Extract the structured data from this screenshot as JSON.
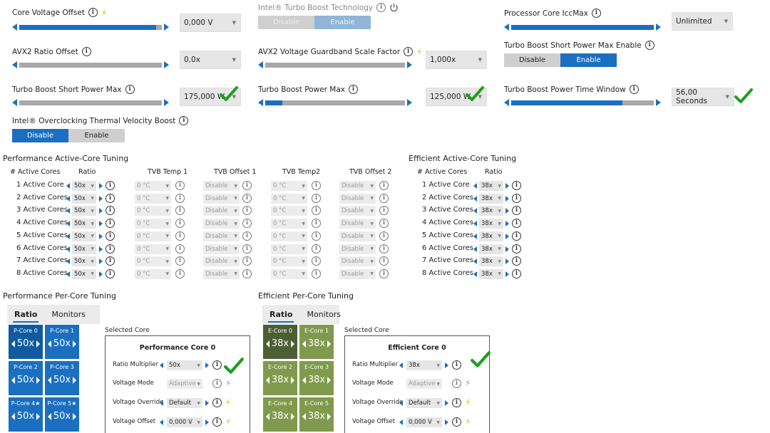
{
  "top_settings": {
    "core_voltage_offset": {
      "label": "Core Voltage Offset",
      "value": "0,000 V",
      "level": 0.96
    },
    "avx2_ratio_offset": {
      "label": "AVX2 Ratio Offset",
      "value": "0,0x",
      "level": 0.96
    },
    "tb_short_power_max": {
      "label": "Turbo Boost Short Power Max",
      "value": "175,000 W",
      "level": 0.65
    },
    "turbo_boost_tech": {
      "label": "Intel® Turbo Boost Technology",
      "options": [
        "Disable",
        "Enable"
      ],
      "selected": "Enable"
    },
    "avx2_voltage_guardband": {
      "label": "AVX2 Voltage Guardband Scale Factor",
      "value": "1,000x",
      "level": 0.96
    },
    "tb_power_max": {
      "label": "Turbo Boost Power Max",
      "value": "125,000 W",
      "level": 0.12
    },
    "processor_iccmax": {
      "label": "Processor Core IccMax",
      "value": "Unlimited",
      "level": 1.0
    },
    "tb_short_power_max_enable": {
      "label": "Turbo Boost Short Power Max Enable",
      "options": [
        "Disable",
        "Enable"
      ],
      "selected": "Enable"
    },
    "tb_power_time_window": {
      "label": "Turbo Boost Power Time Window",
      "value": "56,00 Seconds",
      "level": 0.78
    },
    "thermal_velocity_boost": {
      "label": "Intel® Overclocking Thermal Velocity Boost",
      "options": [
        "Disable",
        "Enable"
      ],
      "selected": "Disable"
    }
  },
  "perf_active_core": {
    "title": "Performance Active-Core Tuning",
    "headers": [
      "# Active Cores",
      "Ratio",
      "TVB Temp 1",
      "TVB Offset 1",
      "TVB Temp2",
      "TVB Offset 2"
    ],
    "rows": [
      {
        "label": "1 Active Core",
        "ratio": "50x",
        "temp1": "0 °C",
        "off1": "Disable",
        "temp2": "0 °C",
        "off2": "Disable"
      },
      {
        "label": "2 Active Cores",
        "ratio": "50x",
        "temp1": "0 °C",
        "off1": "Disable",
        "temp2": "0 °C",
        "off2": "Disable"
      },
      {
        "label": "3 Active Cores",
        "ratio": "50x",
        "temp1": "0 °C",
        "off1": "Disable",
        "temp2": "0 °C",
        "off2": "Disable"
      },
      {
        "label": "4 Active Cores",
        "ratio": "50x",
        "temp1": "0 °C",
        "off1": "Disable",
        "temp2": "0 °C",
        "off2": "Disable"
      },
      {
        "label": "5 Active Cores",
        "ratio": "50x",
        "temp1": "0 °C",
        "off1": "Disable",
        "temp2": "0 °C",
        "off2": "Disable"
      },
      {
        "label": "6 Active Cores",
        "ratio": "50x",
        "temp1": "0 °C",
        "off1": "Disable",
        "temp2": "0 °C",
        "off2": "Disable"
      },
      {
        "label": "7 Active Cores",
        "ratio": "50x",
        "temp1": "0 °C",
        "off1": "Disable",
        "temp2": "0 °C",
        "off2": "Disable"
      },
      {
        "label": "8 Active Cores",
        "ratio": "50x",
        "temp1": "0 °C",
        "off1": "Disable",
        "temp2": "0 °C",
        "off2": "Disable"
      }
    ]
  },
  "eff_active_core": {
    "title": "Efficient Active-Core Tuning",
    "headers": [
      "# Active Cores",
      "Ratio"
    ],
    "rows": [
      {
        "label": "1 Active Core",
        "ratio": "38x"
      },
      {
        "label": "2 Active Cores",
        "ratio": "38x"
      },
      {
        "label": "3 Active Cores",
        "ratio": "38x"
      },
      {
        "label": "4 Active Cores",
        "ratio": "38x"
      },
      {
        "label": "5 Active Cores",
        "ratio": "38x"
      },
      {
        "label": "6 Active Cores",
        "ratio": "38x"
      },
      {
        "label": "7 Active Cores",
        "ratio": "38x"
      },
      {
        "label": "8 Active Cores",
        "ratio": "38x"
      }
    ]
  },
  "perf_per_core": {
    "title": "Performance Per-Core Tuning",
    "tabs": [
      "Ratio",
      "Monitors"
    ],
    "tiles": [
      {
        "name": "P-Core 0",
        "value": "50x"
      },
      {
        "name": "P-Core 1",
        "value": "50x"
      },
      {
        "name": "P-Core 2",
        "value": "50x"
      },
      {
        "name": "P-Core 3",
        "value": "50x"
      },
      {
        "name": "P-Core 4★",
        "value": "50x"
      },
      {
        "name": "P-Core 5★",
        "value": "50x"
      }
    ],
    "selected_label": "Selected Core",
    "panel_title": "Performance Core 0",
    "fields": [
      {
        "label": "Ratio Multiplier",
        "value": "50x"
      },
      {
        "label": "Voltage Mode",
        "value": "Adaptive"
      },
      {
        "label": "Voltage Override",
        "value": "Default"
      },
      {
        "label": "Voltage Offset",
        "value": "0,000 V"
      }
    ]
  },
  "eff_per_core": {
    "title": "Efficient Per-Core Tuning",
    "tabs": [
      "Ratio",
      "Monitors"
    ],
    "tiles": [
      {
        "name": "E-Core 0",
        "value": "38x"
      },
      {
        "name": "E-Core 1",
        "value": "38x"
      },
      {
        "name": "E-Core 2",
        "value": "38x"
      },
      {
        "name": "E-Core 3",
        "value": "38x"
      },
      {
        "name": "E-Core 4",
        "value": "38x"
      },
      {
        "name": "E-Core 5",
        "value": "38x"
      }
    ],
    "selected_label": "Selected Core",
    "panel_title": "Efficient Core 0",
    "fields": [
      {
        "label": "Ratio Multiplier",
        "value": "38x"
      },
      {
        "label": "Voltage Mode",
        "value": "Adaptive"
      },
      {
        "label": "Voltage Override",
        "value": "Default"
      },
      {
        "label": "Voltage Offset",
        "value": "0,000 V"
      }
    ]
  }
}
